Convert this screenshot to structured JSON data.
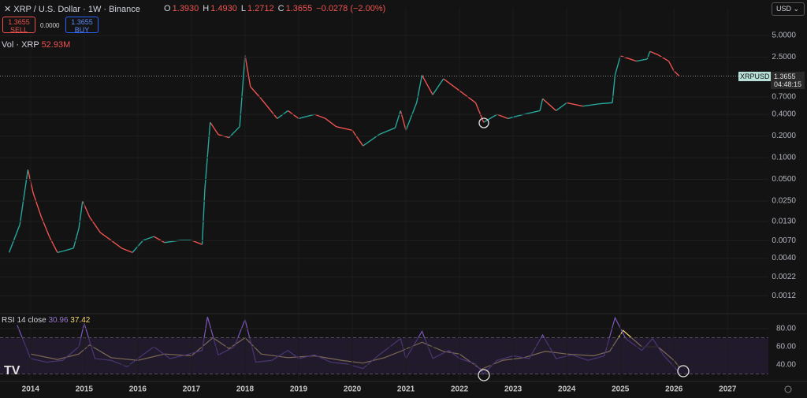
{
  "header": {
    "symbol": "XRP / U.S. Dollar · 1W · Binance",
    "ohlc": [
      {
        "key": "O",
        "value": "1.3930"
      },
      {
        "key": "H",
        "value": "1.4930"
      },
      {
        "key": "L",
        "value": "1.2712"
      },
      {
        "key": "C",
        "value": "1.3655"
      }
    ],
    "change": "−0.0278 (−2.00%)",
    "sell_price": "1.3655",
    "sell_label": "SELL",
    "spread": "0.0000",
    "buy_price": "1.3655",
    "buy_label": "BUY",
    "volume_label": "Vol · XRP",
    "volume_value": "52.93M",
    "currency": "USD",
    "price_tag_symbol": "XRPUSD",
    "price_tag_value": "1.3655",
    "price_tag_countdown": "04:48:15",
    "rsi_label": "RSI 14 close",
    "rsi_value": "30.96",
    "rsi_ma_value": "37.42"
  },
  "chart_data": [
    {
      "type": "line",
      "log_scale": true,
      "up_color": "#26a69a",
      "down_color": "#ef5350",
      "x": [
        2013.6,
        2013.8,
        2013.95,
        2014.05,
        2014.2,
        2014.35,
        2014.5,
        2014.6,
        2014.8,
        2014.9,
        2014.97,
        2015.1,
        2015.3,
        2015.5,
        2015.7,
        2015.9,
        2016.1,
        2016.3,
        2016.5,
        2016.8,
        2017.0,
        2017.2,
        2017.25,
        2017.35,
        2017.5,
        2017.7,
        2017.9,
        2018.0,
        2018.1,
        2018.3,
        2018.6,
        2018.8,
        2019.0,
        2019.3,
        2019.5,
        2019.7,
        2020.0,
        2020.2,
        2020.5,
        2020.8,
        2020.9,
        2021.0,
        2021.2,
        2021.3,
        2021.5,
        2021.7,
        2021.9,
        2022.1,
        2022.3,
        2022.45,
        2022.7,
        2022.9,
        2023.2,
        2023.5,
        2023.55,
        2023.8,
        2024.0,
        2024.3,
        2024.6,
        2024.85,
        2024.9,
        2025.0,
        2025.3,
        2025.5,
        2025.55,
        2025.7,
        2025.9,
        2026.0,
        2026.1
      ],
      "values": [
        0.0048,
        0.0117,
        0.068,
        0.032,
        0.015,
        0.008,
        0.0048,
        0.005,
        0.0055,
        0.0103,
        0.025,
        0.015,
        0.0091,
        0.0071,
        0.0055,
        0.0048,
        0.0071,
        0.008,
        0.0066,
        0.0071,
        0.0071,
        0.0062,
        0.036,
        0.31,
        0.21,
        0.19,
        0.27,
        2.65,
        0.97,
        0.66,
        0.35,
        0.45,
        0.35,
        0.4,
        0.35,
        0.27,
        0.24,
        0.146,
        0.21,
        0.26,
        0.45,
        0.24,
        0.58,
        1.4,
        0.75,
        1.25,
        0.97,
        0.75,
        0.58,
        0.31,
        0.4,
        0.35,
        0.4,
        0.45,
        0.66,
        0.45,
        0.58,
        0.52,
        0.56,
        0.58,
        1.4,
        2.6,
        2.2,
        2.35,
        3.0,
        2.7,
        2.2,
        1.6,
        1.3655
      ],
      "xlim": [
        2013.43,
        2027.76
      ],
      "xticks": [
        2014,
        2015,
        2016,
        2017,
        2018,
        2019,
        2020,
        2021,
        2022,
        2023,
        2024,
        2025,
        2026,
        2027
      ],
      "ylim": [
        0.00073,
        12.1
      ],
      "yticks": [
        {
          "value": 5,
          "label": "5.0000"
        },
        {
          "value": 2.5,
          "label": "2.5000"
        },
        {
          "value": 0.7,
          "label": "0.7000"
        },
        {
          "value": 0.4,
          "label": "0.4000"
        },
        {
          "value": 0.2,
          "label": "0.2000"
        },
        {
          "value": 0.1,
          "label": "0.1000"
        },
        {
          "value": 0.05,
          "label": "0.0500"
        },
        {
          "value": 0.025,
          "label": "0.0250"
        },
        {
          "value": 0.013,
          "label": "0.0130"
        },
        {
          "value": 0.007,
          "label": "0.0070"
        },
        {
          "value": 0.004,
          "label": "0.0040"
        },
        {
          "value": 0.0022,
          "label": "0.0022"
        },
        {
          "value": 0.0012,
          "label": "0.0012"
        }
      ]
    },
    {
      "type": "line",
      "band": [
        30,
        70
      ],
      "band_color": "#2a1f3d",
      "series": [
        {
          "color": "#7e57c2",
          "x": [
            2013.75,
            2014.0,
            2014.3,
            2014.6,
            2014.9,
            2015.0,
            2015.2,
            2015.5,
            2015.8,
            2016.0,
            2016.3,
            2016.6,
            2016.9,
            2017.2,
            2017.3,
            2017.5,
            2017.8,
            2018.0,
            2018.2,
            2018.5,
            2018.8,
            2019.0,
            2019.3,
            2019.6,
            2019.9,
            2020.2,
            2020.5,
            2020.9,
            2021.0,
            2021.3,
            2021.5,
            2021.8,
            2022.0,
            2022.3,
            2022.45,
            2022.7,
            2023.0,
            2023.3,
            2023.55,
            2023.8,
            2024.1,
            2024.4,
            2024.7,
            2024.9,
            2025.1,
            2025.4,
            2025.6,
            2025.8,
            2026.0,
            2026.1
          ],
          "values": [
            84,
            47,
            43,
            45,
            60,
            86,
            47,
            45,
            38,
            47,
            60,
            47,
            51,
            56,
            93,
            51,
            60,
            90,
            43,
            45,
            56,
            47,
            51,
            43,
            41,
            36,
            51,
            69,
            47,
            77,
            47,
            56,
            47,
            41,
            30,
            45,
            50,
            47,
            73,
            47,
            51,
            45,
            50,
            92,
            69,
            56,
            69,
            51,
            38,
            30.96
          ]
        },
        {
          "color": "#f7d774",
          "x": [
            2014.0,
            2014.5,
            2014.9,
            2015.1,
            2015.5,
            2016.0,
            2016.5,
            2017.0,
            2017.4,
            2017.7,
            2018.0,
            2018.3,
            2018.8,
            2019.3,
            2019.8,
            2020.2,
            2020.6,
            2020.9,
            2021.3,
            2021.7,
            2022.0,
            2022.4,
            2022.8,
            2023.2,
            2023.6,
            2024.0,
            2024.5,
            2024.8,
            2025.05,
            2025.4,
            2025.7,
            2026.0,
            2026.1
          ],
          "values": [
            52,
            46,
            52,
            62,
            48,
            45,
            52,
            50,
            70,
            58,
            70,
            52,
            48,
            50,
            45,
            42,
            48,
            55,
            65,
            55,
            52,
            35,
            45,
            48,
            55,
            52,
            50,
            55,
            78,
            60,
            60,
            45,
            37.42
          ]
        }
      ],
      "xlim": [
        2013.43,
        2027.76
      ],
      "ylim": [
        22.6,
        94.8
      ],
      "yticks": [
        {
          "value": 80,
          "label": "80.00"
        },
        {
          "value": 60,
          "label": "60.00"
        },
        {
          "value": 40,
          "label": "40.00"
        }
      ]
    }
  ]
}
